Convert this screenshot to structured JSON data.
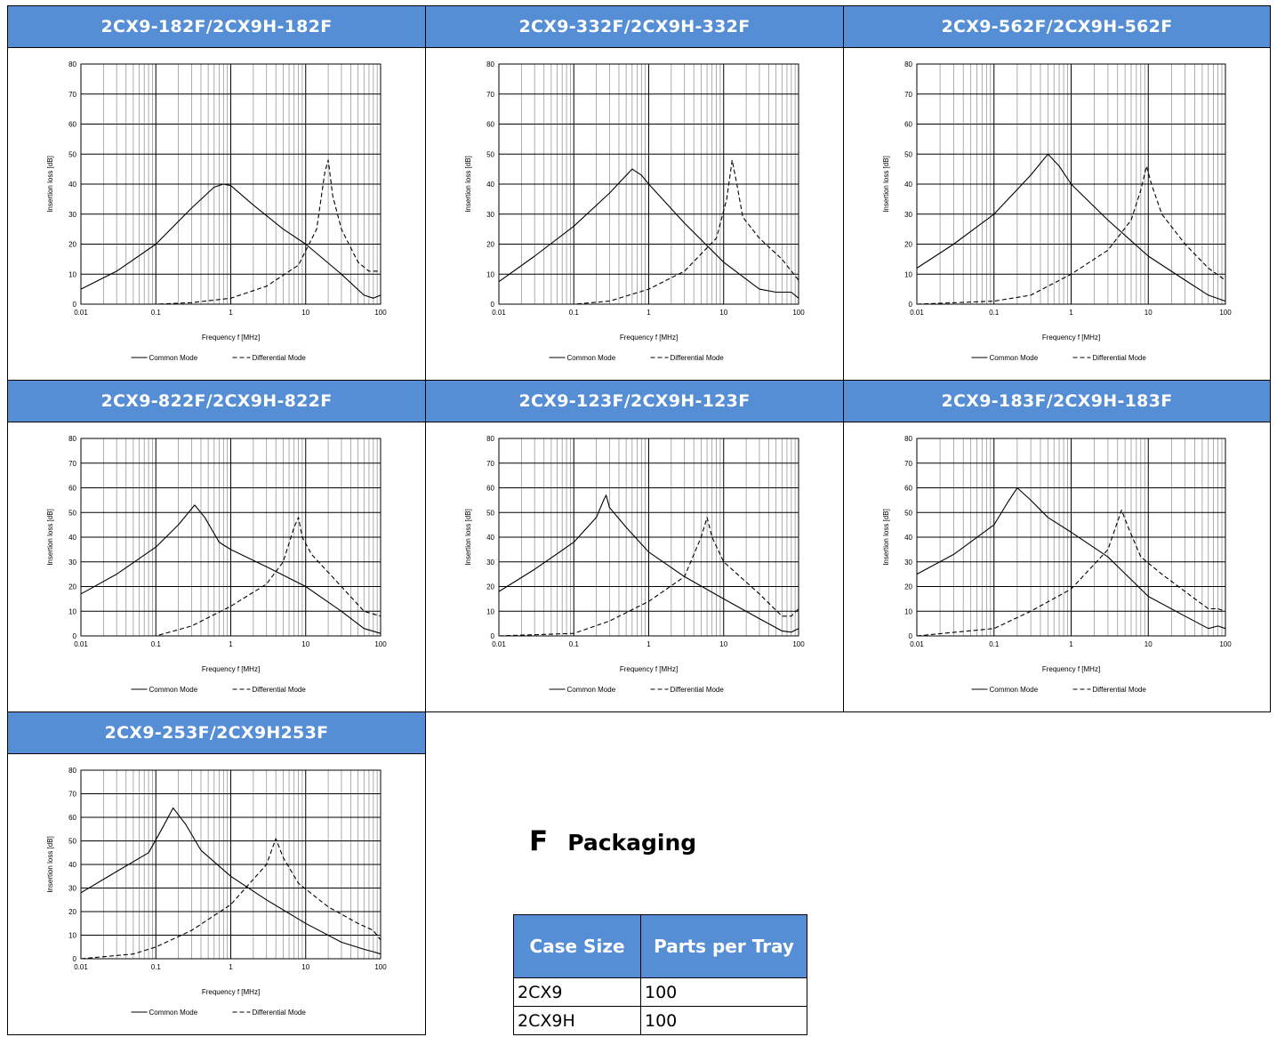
{
  "panels": [
    {
      "title": "2CX9-182F/2CX9H-182F"
    },
    {
      "title": "2CX9-332F/2CX9H-332F"
    },
    {
      "title": "2CX9-562F/2CX9H-562F"
    },
    {
      "title": "2CX9-822F/2CX9H-822F"
    },
    {
      "title": "2CX9-123F/2CX9H-123F"
    },
    {
      "title": "2CX9-183F/2CX9H-183F"
    },
    {
      "title": "2CX9-253F/2CX9H253F"
    }
  ],
  "packaging": {
    "letter": "F",
    "title": "Packaging",
    "headers": [
      "Case Size",
      "Parts per Tray"
    ],
    "rows": [
      [
        "2CX9",
        "100"
      ],
      [
        "2CX9H",
        "100"
      ]
    ]
  },
  "chart_data": [
    {
      "type": "line",
      "title": "2CX9-182F/2CX9H-182F",
      "xlabel": "Frequency f [MHz]",
      "ylabel": "Insertion loss [dB]",
      "x_scale": "log",
      "xlim": [
        0.01,
        100
      ],
      "ylim": [
        0,
        80
      ],
      "x_ticks": [
        "0.01",
        "0.1",
        "1",
        "10",
        "100"
      ],
      "y_ticks": [
        "0",
        "10",
        "20",
        "30",
        "40",
        "50",
        "60",
        "70",
        "80"
      ],
      "grid": true,
      "legend": "bottom",
      "series": [
        {
          "name": "Common Mode",
          "style": "solid",
          "points": [
            [
              0.01,
              5
            ],
            [
              0.03,
              11
            ],
            [
              0.1,
              20
            ],
            [
              0.3,
              32
            ],
            [
              0.6,
              39
            ],
            [
              0.8,
              40
            ],
            [
              1,
              39.5
            ],
            [
              2,
              33
            ],
            [
              5,
              25
            ],
            [
              10,
              20
            ],
            [
              30,
              10
            ],
            [
              60,
              3
            ],
            [
              80,
              2
            ],
            [
              100,
              3
            ]
          ]
        },
        {
          "name": "Differential Mode",
          "style": "dashed",
          "points": [
            [
              0.01,
              0
            ],
            [
              0.1,
              0
            ],
            [
              0.3,
              0.5
            ],
            [
              1,
              2
            ],
            [
              3,
              6
            ],
            [
              8,
              13
            ],
            [
              14,
              25
            ],
            [
              18,
              44
            ],
            [
              20,
              48
            ],
            [
              23,
              36
            ],
            [
              30,
              25
            ],
            [
              50,
              14
            ],
            [
              70,
              11
            ],
            [
              100,
              11
            ]
          ]
        }
      ]
    },
    {
      "type": "line",
      "title": "2CX9-332F/2CX9H-332F",
      "xlabel": "Frequency f [MHz]",
      "ylabel": "Insertion loss [dB]",
      "x_scale": "log",
      "xlim": [
        0.01,
        100
      ],
      "ylim": [
        0,
        80
      ],
      "x_ticks": [
        "0.01",
        "0.1",
        "1",
        "10",
        "100"
      ],
      "y_ticks": [
        "0",
        "10",
        "20",
        "30",
        "40",
        "50",
        "60",
        "70",
        "80"
      ],
      "grid": true,
      "legend": "bottom",
      "series": [
        {
          "name": "Common Mode",
          "style": "solid",
          "points": [
            [
              0.01,
              7.5
            ],
            [
              0.03,
              16
            ],
            [
              0.1,
              26
            ],
            [
              0.3,
              37
            ],
            [
              0.6,
              45
            ],
            [
              0.8,
              43
            ],
            [
              1,
              40
            ],
            [
              3,
              27
            ],
            [
              10,
              14
            ],
            [
              30,
              5
            ],
            [
              50,
              4
            ],
            [
              80,
              4
            ],
            [
              100,
              2
            ]
          ]
        },
        {
          "name": "Differential Mode",
          "style": "dashed",
          "points": [
            [
              0.01,
              0
            ],
            [
              0.1,
              0
            ],
            [
              0.3,
              1
            ],
            [
              1,
              5
            ],
            [
              3,
              11
            ],
            [
              8,
              22
            ],
            [
              11,
              35
            ],
            [
              13,
              48
            ],
            [
              15,
              40
            ],
            [
              18,
              29
            ],
            [
              30,
              22
            ],
            [
              60,
              15
            ],
            [
              100,
              8
            ]
          ]
        }
      ]
    },
    {
      "type": "line",
      "title": "2CX9-562F/2CX9H-562F",
      "xlabel": "Frequency f [MHz]",
      "ylabel": "Insertion loss [dB]",
      "x_scale": "log",
      "xlim": [
        0.01,
        100
      ],
      "ylim": [
        0,
        80
      ],
      "x_ticks": [
        "0.01",
        "0.1",
        "1",
        "10",
        "100"
      ],
      "y_ticks": [
        "0",
        "10",
        "20",
        "30",
        "40",
        "50",
        "60",
        "70",
        "80"
      ],
      "grid": true,
      "legend": "bottom",
      "series": [
        {
          "name": "Common Mode",
          "style": "solid",
          "points": [
            [
              0.01,
              12
            ],
            [
              0.03,
              20
            ],
            [
              0.1,
              30
            ],
            [
              0.3,
              43
            ],
            [
              0.5,
              50
            ],
            [
              0.7,
              46
            ],
            [
              1,
              40
            ],
            [
              3,
              28
            ],
            [
              10,
              16
            ],
            [
              30,
              8
            ],
            [
              60,
              3
            ],
            [
              100,
              1
            ]
          ]
        },
        {
          "name": "Differential Mode",
          "style": "dashed",
          "points": [
            [
              0.01,
              0
            ],
            [
              0.1,
              1
            ],
            [
              0.3,
              3
            ],
            [
              1,
              10
            ],
            [
              3,
              18
            ],
            [
              6,
              28
            ],
            [
              8,
              38
            ],
            [
              9.5,
              46
            ],
            [
              11,
              40
            ],
            [
              15,
              30
            ],
            [
              30,
              20
            ],
            [
              60,
              12
            ],
            [
              100,
              8
            ]
          ]
        }
      ]
    },
    {
      "type": "line",
      "title": "2CX9-822F/2CX9H-822F",
      "xlabel": "Frequency f [MHz]",
      "ylabel": "Insertion loss [dB]",
      "x_scale": "log",
      "xlim": [
        0.01,
        100
      ],
      "ylim": [
        0,
        80
      ],
      "x_ticks": [
        "0.01",
        "0.1",
        "1",
        "10",
        "100"
      ],
      "y_ticks": [
        "0",
        "10",
        "20",
        "30",
        "40",
        "50",
        "60",
        "70",
        "80"
      ],
      "grid": true,
      "legend": "bottom",
      "series": [
        {
          "name": "Common Mode",
          "style": "solid",
          "points": [
            [
              0.01,
              17
            ],
            [
              0.03,
              25
            ],
            [
              0.1,
              36
            ],
            [
              0.2,
              45
            ],
            [
              0.33,
              53
            ],
            [
              0.45,
              48
            ],
            [
              0.7,
              38
            ],
            [
              1,
              35
            ],
            [
              3,
              28
            ],
            [
              10,
              20
            ],
            [
              30,
              10
            ],
            [
              60,
              3
            ],
            [
              100,
              1
            ]
          ]
        },
        {
          "name": "Differential Mode",
          "style": "dashed",
          "points": [
            [
              0.01,
              0
            ],
            [
              0.1,
              0
            ],
            [
              0.3,
              4
            ],
            [
              1,
              12
            ],
            [
              3,
              21
            ],
            [
              5,
              30
            ],
            [
              7,
              44
            ],
            [
              8,
              48
            ],
            [
              9,
              40
            ],
            [
              12,
              33
            ],
            [
              30,
              20
            ],
            [
              60,
              10
            ],
            [
              100,
              8
            ]
          ]
        }
      ]
    },
    {
      "type": "line",
      "title": "2CX9-123F/2CX9H-123F",
      "xlabel": "Frequency f [MHz]",
      "ylabel": "Insertion loss [dB]",
      "x_scale": "log",
      "xlim": [
        0.01,
        100
      ],
      "ylim": [
        0,
        80
      ],
      "x_ticks": [
        "0.01",
        "0.1",
        "1",
        "10",
        "100"
      ],
      "y_ticks": [
        "0",
        "10",
        "20",
        "30",
        "40",
        "50",
        "60",
        "70",
        "80"
      ],
      "grid": true,
      "legend": "bottom",
      "series": [
        {
          "name": "Common Mode",
          "style": "solid",
          "points": [
            [
              0.01,
              18
            ],
            [
              0.03,
              27
            ],
            [
              0.1,
              38
            ],
            [
              0.2,
              48
            ],
            [
              0.25,
              55
            ],
            [
              0.27,
              57
            ],
            [
              0.3,
              52
            ],
            [
              0.5,
              44
            ],
            [
              1,
              34
            ],
            [
              3,
              24
            ],
            [
              10,
              15
            ],
            [
              30,
              7
            ],
            [
              60,
              2
            ],
            [
              80,
              1.5
            ],
            [
              100,
              3
            ]
          ]
        },
        {
          "name": "Differential Mode",
          "style": "dashed",
          "points": [
            [
              0.01,
              0
            ],
            [
              0.1,
              1
            ],
            [
              0.3,
              6
            ],
            [
              1,
              14
            ],
            [
              3,
              24
            ],
            [
              5,
              40
            ],
            [
              6,
              48
            ],
            [
              7,
              40
            ],
            [
              10,
              30
            ],
            [
              30,
              17
            ],
            [
              60,
              8
            ],
            [
              80,
              8
            ],
            [
              100,
              11
            ]
          ]
        }
      ]
    },
    {
      "type": "line",
      "title": "2CX9-183F/2CX9H-183F",
      "xlabel": "Frequency f [MHz]",
      "ylabel": "Insertion loss [dB]",
      "x_scale": "log",
      "xlim": [
        0.01,
        100
      ],
      "ylim": [
        0,
        80
      ],
      "x_ticks": [
        "0.01",
        "0.1",
        "1",
        "10",
        "100"
      ],
      "y_ticks": [
        "0",
        "10",
        "20",
        "30",
        "40",
        "50",
        "60",
        "70",
        "80"
      ],
      "grid": true,
      "legend": "bottom",
      "series": [
        {
          "name": "Common Mode",
          "style": "solid",
          "points": [
            [
              0.01,
              25
            ],
            [
              0.03,
              33
            ],
            [
              0.1,
              45
            ],
            [
              0.15,
              54
            ],
            [
              0.2,
              60
            ],
            [
              0.3,
              55
            ],
            [
              0.5,
              48
            ],
            [
              1,
              42
            ],
            [
              3,
              32
            ],
            [
              10,
              16
            ],
            [
              30,
              8
            ],
            [
              60,
              3
            ],
            [
              80,
              4
            ],
            [
              100,
              3
            ]
          ]
        },
        {
          "name": "Differential Mode",
          "style": "dashed",
          "points": [
            [
              0.01,
              0
            ],
            [
              0.1,
              3
            ],
            [
              0.3,
              10
            ],
            [
              1,
              19
            ],
            [
              3,
              35
            ],
            [
              4.5,
              51
            ],
            [
              5.5,
              44
            ],
            [
              8,
              32
            ],
            [
              15,
              25
            ],
            [
              30,
              18
            ],
            [
              60,
              11
            ],
            [
              80,
              11
            ],
            [
              100,
              10
            ]
          ]
        }
      ]
    },
    {
      "type": "line",
      "title": "2CX9-253F/2CX9H253F",
      "xlabel": "Frequency f [MHz]",
      "ylabel": "Insertion loss [dB]",
      "x_scale": "log",
      "xlim": [
        0.01,
        100
      ],
      "ylim": [
        0,
        80
      ],
      "x_ticks": [
        "0.01",
        "0.1",
        "1",
        "10",
        "100"
      ],
      "y_ticks": [
        "0",
        "10",
        "20",
        "30",
        "40",
        "50",
        "60",
        "70",
        "80"
      ],
      "grid": true,
      "legend": "bottom",
      "series": [
        {
          "name": "Common Mode",
          "style": "solid",
          "points": [
            [
              0.01,
              28
            ],
            [
              0.03,
              37
            ],
            [
              0.08,
              45
            ],
            [
              0.12,
              55
            ],
            [
              0.17,
              64
            ],
            [
              0.25,
              57
            ],
            [
              0.4,
              46
            ],
            [
              1,
              35
            ],
            [
              3,
              25
            ],
            [
              10,
              15
            ],
            [
              30,
              7
            ],
            [
              60,
              4
            ],
            [
              80,
              3
            ],
            [
              100,
              2
            ]
          ]
        },
        {
          "name": "Differential Mode",
          "style": "dashed",
          "points": [
            [
              0.01,
              0
            ],
            [
              0.05,
              2
            ],
            [
              0.1,
              5
            ],
            [
              0.3,
              12
            ],
            [
              1,
              23
            ],
            [
              3,
              40
            ],
            [
              4,
              51
            ],
            [
              5,
              43
            ],
            [
              8,
              32
            ],
            [
              20,
              22
            ],
            [
              50,
              15
            ],
            [
              80,
              12
            ],
            [
              100,
              8
            ]
          ]
        }
      ]
    }
  ]
}
